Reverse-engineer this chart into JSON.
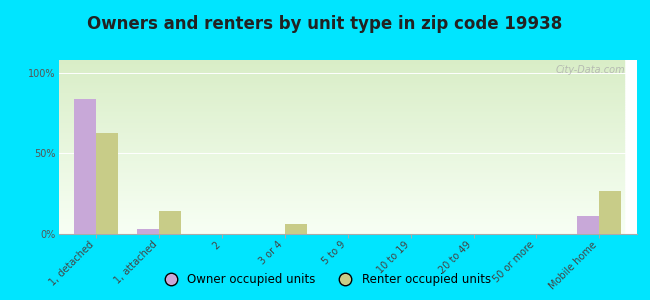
{
  "title": "Owners and renters by unit type in zip code 19938",
  "categories": [
    "1, detached",
    "1, attached",
    "2",
    "3 or 4",
    "5 to 9",
    "10 to 19",
    "20 to 49",
    "50 or more",
    "Mobile home"
  ],
  "owner_values": [
    84,
    3,
    0,
    0,
    0,
    0,
    0,
    0,
    11
  ],
  "renter_values": [
    63,
    14,
    0,
    6,
    0,
    0,
    0,
    0,
    27
  ],
  "owner_color": "#c8a8d8",
  "renter_color": "#c8cc88",
  "background_color": "#00e5ff",
  "ylabel_ticks": [
    "0%",
    "50%",
    "100%"
  ],
  "yticks": [
    0,
    50,
    100
  ],
  "ylim": [
    0,
    108
  ],
  "bar_width": 0.35,
  "title_fontsize": 12,
  "tick_fontsize": 7,
  "legend_fontsize": 8.5,
  "watermark": "City-Data.com"
}
